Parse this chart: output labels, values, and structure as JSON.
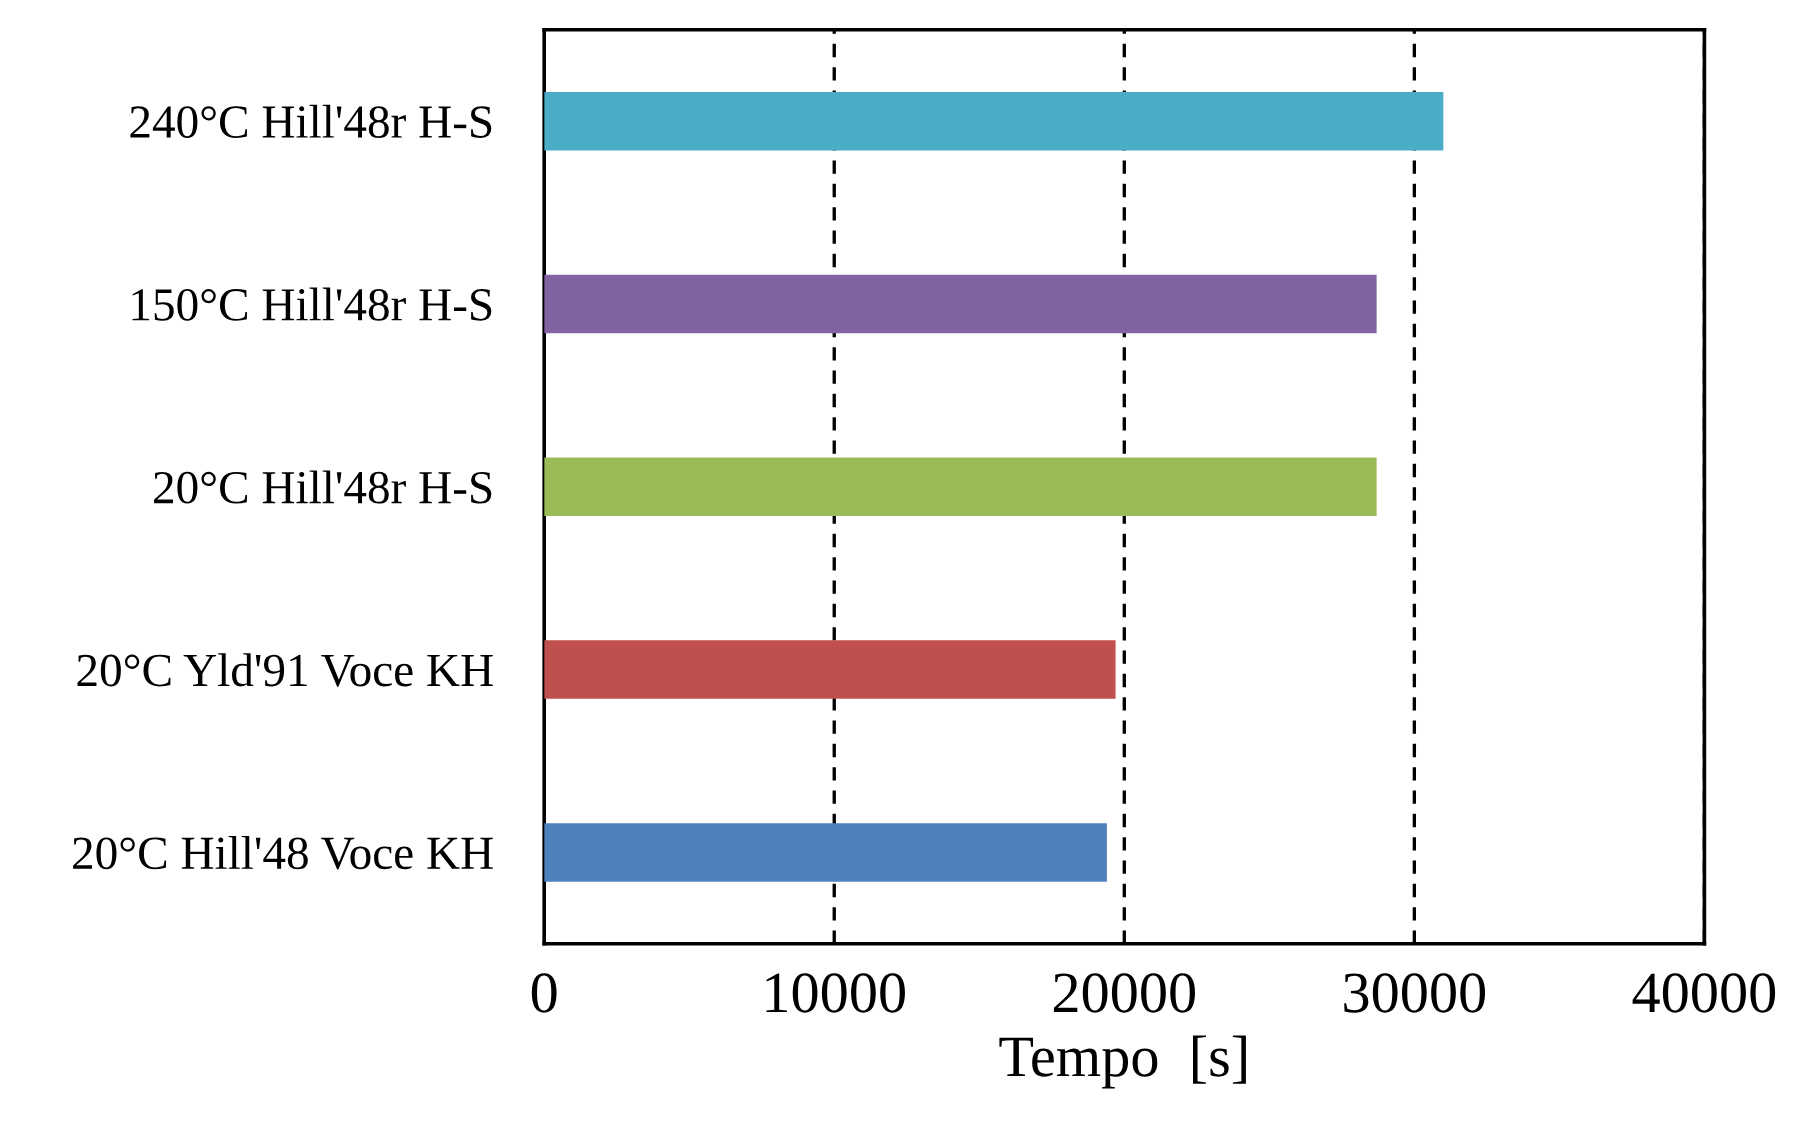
{
  "chart_data": {
    "type": "bar",
    "orientation": "horizontal",
    "xlabel": "Tempo  [s]",
    "categories": [
      "240°C Hill'48r H-S",
      "150°C Hill'48r H-S",
      "20°C Hill'48r H-S",
      "20°C Yld'91 Voce KH",
      "20°C Hill'48 Voce KH"
    ],
    "values": [
      31000,
      28700,
      28700,
      19700,
      19400
    ],
    "colors": [
      "#4bacc6",
      "#8064a2",
      "#9bbb59",
      "#c0504d",
      "#4f81bd"
    ],
    "xlim": [
      0,
      40000
    ],
    "xticks": [
      0,
      10000,
      20000,
      30000,
      40000
    ],
    "grid": "x"
  }
}
